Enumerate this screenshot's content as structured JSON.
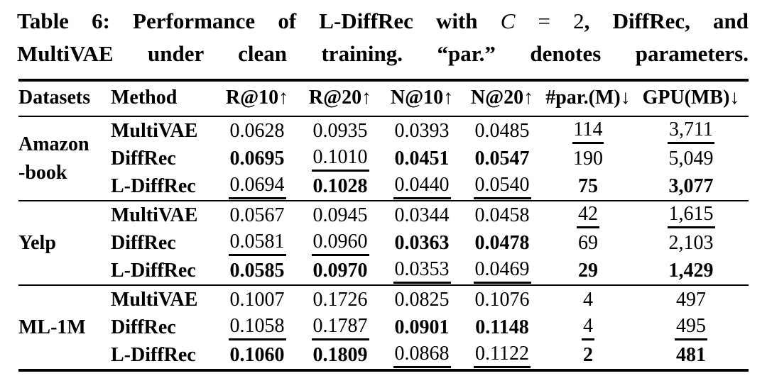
{
  "caption": {
    "line1_pre": "Table 6: Performance of L-DiffRec with ",
    "line1_math_var": "C",
    "line1_math_rest": " = 2",
    "line1_post": ", DiffRec, and",
    "line2": "MultiVAE under clean training. “par.” denotes parameters."
  },
  "table": {
    "columns": [
      "Datasets",
      "Method",
      "R@10↑",
      "R@20↑",
      "N@10↑",
      "N@20↑",
      "#par.(M)↓",
      "GPU(MB)↓"
    ],
    "groups": [
      {
        "dataset_lines": [
          "Amazon",
          "-book"
        ],
        "rows": [
          {
            "method": "MultiVAE",
            "cells": [
              {
                "v": "0.0628",
                "s": ""
              },
              {
                "v": "0.0935",
                "s": ""
              },
              {
                "v": "0.0393",
                "s": ""
              },
              {
                "v": "0.0485",
                "s": ""
              },
              {
                "v": "114",
                "s": "u"
              },
              {
                "v": "3,711",
                "s": "u"
              }
            ]
          },
          {
            "method": "DiffRec",
            "cells": [
              {
                "v": "0.0695",
                "s": "b"
              },
              {
                "v": "0.1010",
                "s": "u"
              },
              {
                "v": "0.0451",
                "s": "b"
              },
              {
                "v": "0.0547",
                "s": "b"
              },
              {
                "v": "190",
                "s": ""
              },
              {
                "v": "5,049",
                "s": ""
              }
            ]
          },
          {
            "method": "L-DiffRec",
            "cells": [
              {
                "v": "0.0694",
                "s": "u"
              },
              {
                "v": "0.1028",
                "s": "b"
              },
              {
                "v": "0.0440",
                "s": "u"
              },
              {
                "v": "0.0540",
                "s": "u"
              },
              {
                "v": "75",
                "s": "b"
              },
              {
                "v": "3,077",
                "s": "b"
              }
            ]
          }
        ]
      },
      {
        "dataset_lines": [
          "Yelp"
        ],
        "rows": [
          {
            "method": "MultiVAE",
            "cells": [
              {
                "v": "0.0567",
                "s": ""
              },
              {
                "v": "0.0945",
                "s": ""
              },
              {
                "v": "0.0344",
                "s": ""
              },
              {
                "v": "0.0458",
                "s": ""
              },
              {
                "v": "42",
                "s": "u"
              },
              {
                "v": "1,615",
                "s": "u"
              }
            ]
          },
          {
            "method": "DiffRec",
            "cells": [
              {
                "v": "0.0581",
                "s": "u"
              },
              {
                "v": "0.0960",
                "s": "u"
              },
              {
                "v": "0.0363",
                "s": "b"
              },
              {
                "v": "0.0478",
                "s": "b"
              },
              {
                "v": "69",
                "s": ""
              },
              {
                "v": "2,103",
                "s": ""
              }
            ]
          },
          {
            "method": "L-DiffRec",
            "cells": [
              {
                "v": "0.0585",
                "s": "b"
              },
              {
                "v": "0.0970",
                "s": "b"
              },
              {
                "v": "0.0353",
                "s": "u"
              },
              {
                "v": "0.0469",
                "s": "u"
              },
              {
                "v": "29",
                "s": "b"
              },
              {
                "v": "1,429",
                "s": "b"
              }
            ]
          }
        ]
      },
      {
        "dataset_lines": [
          "ML-1M"
        ],
        "rows": [
          {
            "method": "MultiVAE",
            "cells": [
              {
                "v": "0.1007",
                "s": ""
              },
              {
                "v": "0.1726",
                "s": ""
              },
              {
                "v": "0.0825",
                "s": ""
              },
              {
                "v": "0.1076",
                "s": ""
              },
              {
                "v": "4",
                "s": ""
              },
              {
                "v": "497",
                "s": ""
              }
            ]
          },
          {
            "method": "DiffRec",
            "cells": [
              {
                "v": "0.1058",
                "s": "u"
              },
              {
                "v": "0.1787",
                "s": "u"
              },
              {
                "v": "0.0901",
                "s": "b"
              },
              {
                "v": "0.1148",
                "s": "b"
              },
              {
                "v": "4",
                "s": "u"
              },
              {
                "v": "495",
                "s": "u"
              }
            ]
          },
          {
            "method": "L-DiffRec",
            "cells": [
              {
                "v": "0.1060",
                "s": "b"
              },
              {
                "v": "0.1809",
                "s": "b"
              },
              {
                "v": "0.0868",
                "s": "u"
              },
              {
                "v": "0.1122",
                "s": "u"
              },
              {
                "v": "2",
                "s": "b"
              },
              {
                "v": "481",
                "s": "b"
              }
            ]
          }
        ]
      }
    ]
  },
  "colors": {
    "text": "#000000",
    "background": "#ffffff"
  }
}
